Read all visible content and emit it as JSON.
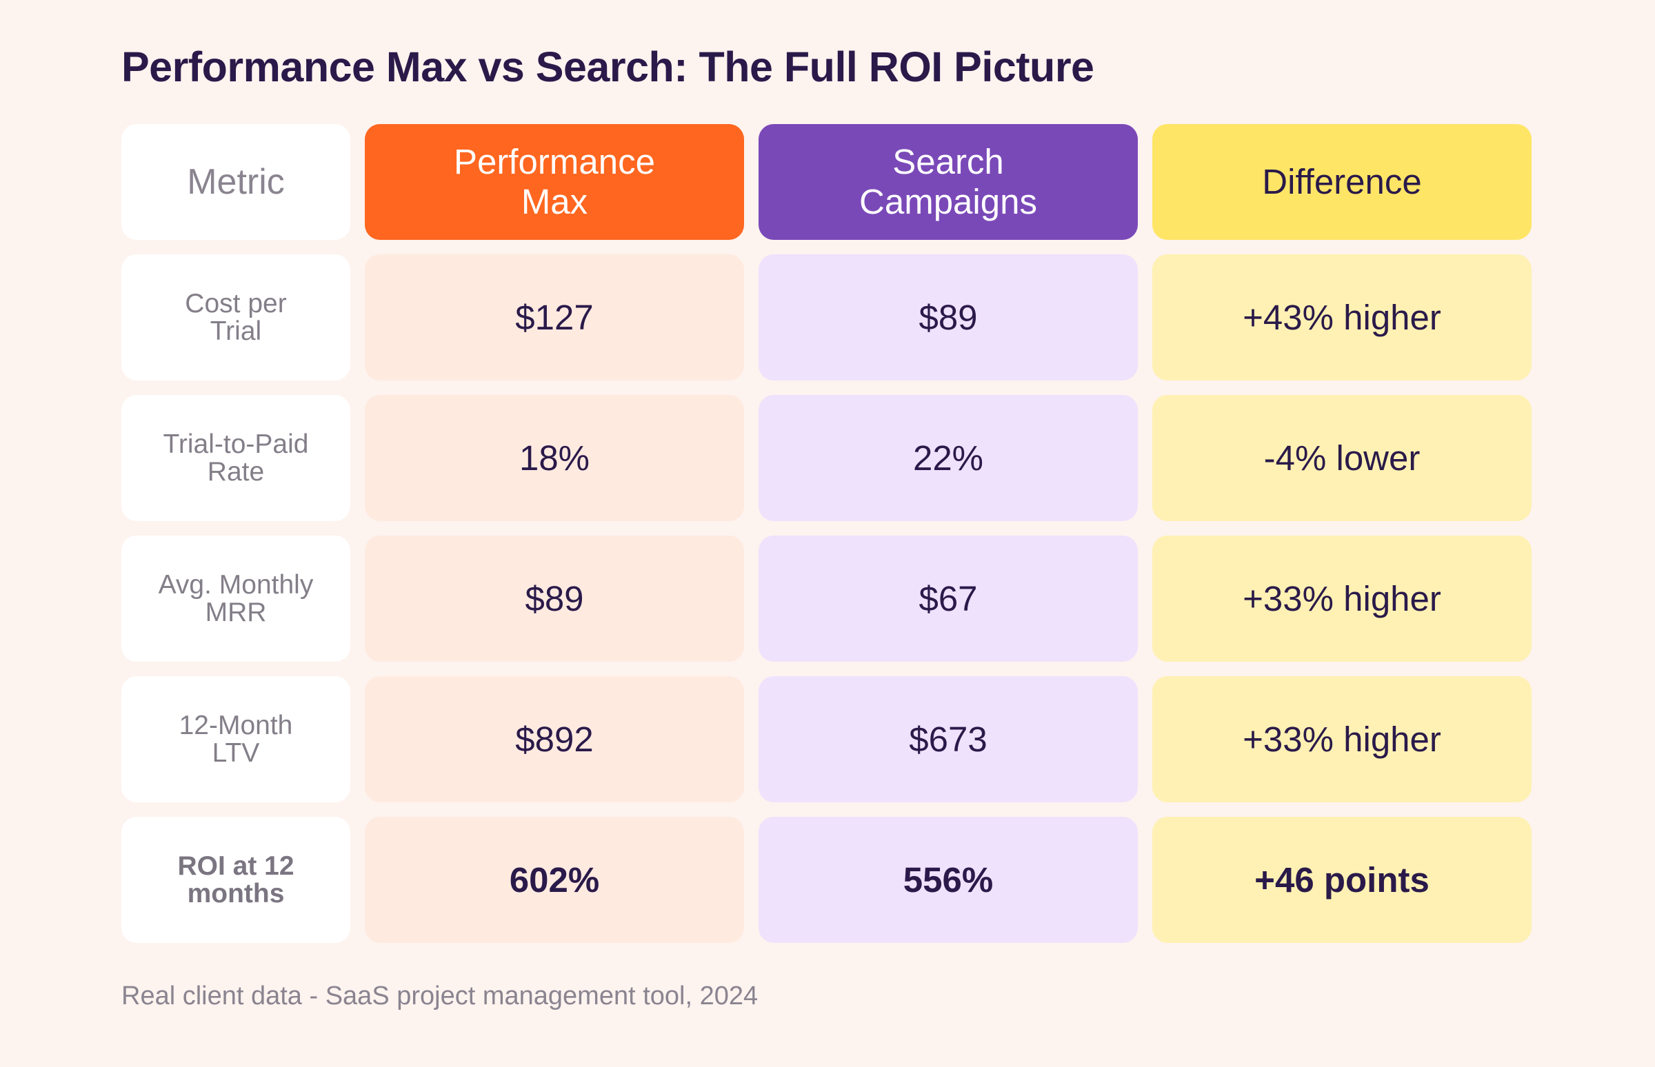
{
  "title": "Performance Max vs Search: The Full ROI Picture",
  "footnote": "Real client data - SaaS project management tool, 2024",
  "colors": {
    "background": "#fdf3ef",
    "performance_max_header": "#ff661f",
    "search_header": "#7a49b8",
    "difference_header": "#ffe566",
    "performance_max_cell": "#ffeae0",
    "search_cell": "#efe2fc",
    "difference_cell": "#fff1b3",
    "text_dark": "#2a1a4a",
    "text_muted": "#8a8490"
  },
  "chart_data": {
    "type": "table",
    "title": "Performance Max vs Search: The Full ROI Picture",
    "columns": [
      "Metric",
      "Performance Max",
      "Search Campaigns",
      "Difference"
    ],
    "rows": [
      {
        "metric": "Cost per Trial",
        "performance_max": "$127",
        "search": "$89",
        "difference": "+43% higher",
        "emphasis": false
      },
      {
        "metric": "Trial-to-Paid Rate",
        "performance_max": "18%",
        "search": "22%",
        "difference": "-4% lower",
        "emphasis": false
      },
      {
        "metric": "Avg. Monthly MRR",
        "performance_max": "$89",
        "search": "$67",
        "difference": "+33% higher",
        "emphasis": false
      },
      {
        "metric": "12-Month LTV",
        "performance_max": "$892",
        "search": "$673",
        "difference": "+33% higher",
        "emphasis": false
      },
      {
        "metric": "ROI at 12 months",
        "performance_max": "602%",
        "search": "556%",
        "difference": "+46 points",
        "emphasis": true
      }
    ]
  }
}
